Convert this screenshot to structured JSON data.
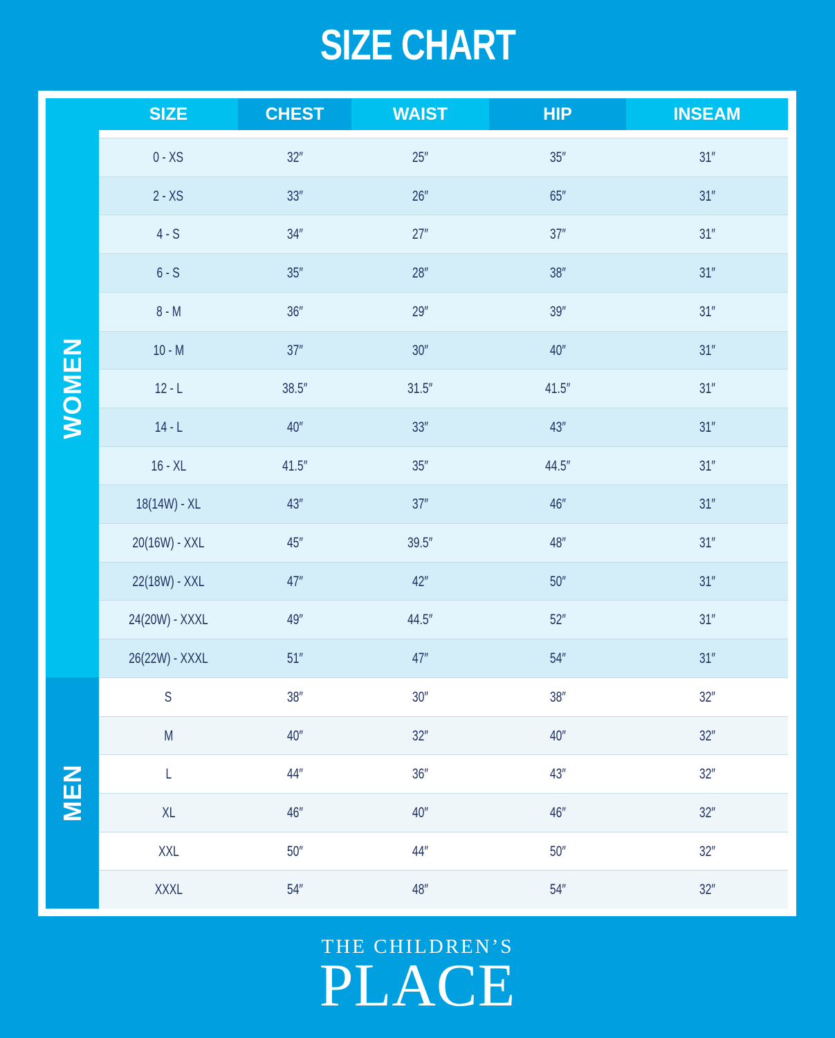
{
  "title": "SIZE CHART",
  "columns": [
    "SIZE",
    "CHEST",
    "WAIST",
    "HIP",
    "INSEAM"
  ],
  "groups": [
    {
      "label": "WOMEN",
      "rows": [
        [
          "0 - XS",
          "32″",
          "25″",
          "35″",
          "31″"
        ],
        [
          "2 - XS",
          "33″",
          "26″",
          "65″",
          "31″"
        ],
        [
          "4 - S",
          "34″",
          "27″",
          "37″",
          "31″"
        ],
        [
          "6 - S",
          "35″",
          "28″",
          "38″",
          "31″"
        ],
        [
          "8 - M",
          "36″",
          "29″",
          "39″",
          "31″"
        ],
        [
          "10 - M",
          "37″",
          "30″",
          "40″",
          "31″"
        ],
        [
          "12 - L",
          "38.5″",
          "31.5″",
          "41.5″",
          "31″"
        ],
        [
          "14 - L",
          "40″",
          "33″",
          "43″",
          "31″"
        ],
        [
          "16 - XL",
          "41.5″",
          "35″",
          "44.5″",
          "31″"
        ],
        [
          "18(14W) - XL",
          "43″",
          "37″",
          "46″",
          "31″"
        ],
        [
          "20(16W) - XXL",
          "45″",
          "39.5″",
          "48″",
          "31″"
        ],
        [
          "22(18W) - XXL",
          "47″",
          "42″",
          "50″",
          "31″"
        ],
        [
          "24(20W) - XXXL",
          "49″",
          "44.5″",
          "52″",
          "31″"
        ],
        [
          "26(22W) - XXXL",
          "51″",
          "47″",
          "54″",
          "31″"
        ]
      ]
    },
    {
      "label": "MEN",
      "rows": [
        [
          "S",
          "38″",
          "30″",
          "38″",
          "32″"
        ],
        [
          "M",
          "40″",
          "32″",
          "40″",
          "32″"
        ],
        [
          "L",
          "44″",
          "36″",
          "43″",
          "32″"
        ],
        [
          "XL",
          "46″",
          "40″",
          "46″",
          "32″"
        ],
        [
          "XXL",
          "50″",
          "44″",
          "50″",
          "32″"
        ],
        [
          "XXXL",
          "54″",
          "48″",
          "54″",
          "32″"
        ]
      ]
    }
  ],
  "logo": {
    "top": "THE CHILDREN’S",
    "main": "PLACE"
  },
  "colors": {
    "background": "#00a0e0",
    "header_light": "#00c0f0",
    "header_dark": "#00a3e0",
    "text": "#1b2b5c",
    "women_row_a": "#e3f5fc",
    "women_row_b": "#d3eef9",
    "men_row_a": "#ffffff",
    "men_row_b": "#eef6fa"
  }
}
